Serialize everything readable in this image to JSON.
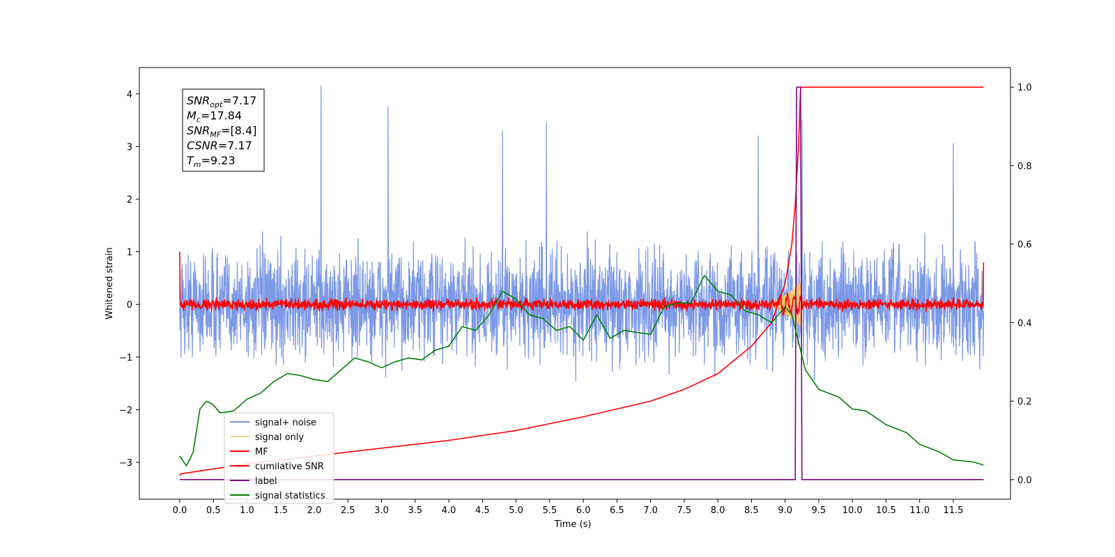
{
  "chart_data": {
    "type": "line",
    "xlabel": "Time (s)",
    "ylabel": "Whitened strain",
    "xlim": [
      -0.6,
      12.35
    ],
    "ylim": [
      -3.7,
      4.5
    ],
    "y2lim": [
      -0.05,
      1.05
    ],
    "x_ticks": [
      0.0,
      0.5,
      1.0,
      1.5,
      2.0,
      2.5,
      3.0,
      3.5,
      4.0,
      4.5,
      5.0,
      5.5,
      6.0,
      6.5,
      7.0,
      7.5,
      8.0,
      8.5,
      9.0,
      9.5,
      10.0,
      10.5,
      11.0,
      11.5
    ],
    "x_tick_labels": [
      "0.0",
      "0.5",
      "1.0",
      "1.5",
      "2.0",
      "2.5",
      "3.0",
      "3.5",
      "4.0",
      "4.5",
      "5.0",
      "5.5",
      "6.0",
      "6.5",
      "7.0",
      "7.5",
      "8.0",
      "8.5",
      "9.0",
      "9.5",
      "10.0",
      "10.5",
      "11.0",
      "11.5"
    ],
    "y_ticks": [
      -3,
      -2,
      -1,
      0,
      1,
      2,
      3,
      4
    ],
    "y_tick_labels": [
      "−3",
      "−2",
      "−1",
      "0",
      "1",
      "2",
      "3",
      "4"
    ],
    "y2_ticks": [
      0.0,
      0.2,
      0.4,
      0.6,
      0.8,
      1.0
    ],
    "y2_tick_labels": [
      "0.0",
      "0.2",
      "0.4",
      "0.6",
      "0.8",
      "1.0"
    ],
    "grid": false,
    "legend_position": "lower-left",
    "info_box": {
      "lines": [
        {
          "main": "SNR",
          "sub": "opt",
          "rest": "=7.17"
        },
        {
          "main": "M",
          "sub": "c",
          "rest": "=17.84"
        },
        {
          "main": "SNR",
          "sub": "MF",
          "rest": "=[8.4]"
        },
        {
          "main": "CSNR",
          "sub": "",
          "rest": "=7.17"
        },
        {
          "main": "T",
          "sub": "m",
          "rest": "=9.23"
        }
      ]
    },
    "series": [
      {
        "name": "signal+ noise",
        "color": "#7593e6",
        "axis": "left",
        "kind": "noise",
        "amplitude": 1.75,
        "peaks_x": [
          2.1,
          3.1,
          4.8,
          5.45,
          8.6,
          9.25,
          11.5
        ],
        "peaks_y": [
          4.15,
          3.75,
          3.3,
          3.45,
          3.2,
          3.5,
          3.05
        ]
      },
      {
        "name": "signal only",
        "color": "#f5c26b",
        "axis": "left",
        "kind": "chirp",
        "x_start": 8.7,
        "x_end": 9.23,
        "max_amplitude": 0.42
      },
      {
        "name": "MF",
        "color": "#ff0000",
        "axis": "left",
        "kind": "noise",
        "amplitude": 0.17,
        "start_value": 1.0,
        "end_value": 0.8
      },
      {
        "name": "cumilative SNR",
        "color": "#ff0000",
        "axis": "right",
        "x": [
          0.0,
          0.02,
          1.0,
          2.0,
          3.0,
          4.0,
          5.0,
          6.0,
          6.5,
          7.0,
          7.5,
          8.0,
          8.5,
          8.8,
          9.0,
          9.1,
          9.15,
          9.2,
          9.23,
          11.95
        ],
        "y": [
          0.01,
          0.015,
          0.04,
          0.06,
          0.08,
          0.1,
          0.125,
          0.16,
          0.18,
          0.2,
          0.23,
          0.27,
          0.34,
          0.4,
          0.5,
          0.6,
          0.7,
          0.85,
          1.0,
          1.0
        ]
      },
      {
        "name": "label",
        "color": "#800080",
        "axis": "right",
        "x": [
          0.0,
          9.15,
          9.17,
          9.23,
          9.25,
          11.95
        ],
        "y": [
          0.0,
          0.0,
          1.0,
          1.0,
          0.0,
          0.0
        ]
      },
      {
        "name": "signal statistics",
        "color": "#008000",
        "axis": "right",
        "x": [
          0.0,
          0.1,
          0.2,
          0.3,
          0.4,
          0.5,
          0.6,
          0.8,
          1.0,
          1.2,
          1.4,
          1.6,
          1.8,
          2.0,
          2.2,
          2.4,
          2.6,
          2.8,
          3.0,
          3.2,
          3.4,
          3.6,
          3.8,
          4.0,
          4.2,
          4.4,
          4.6,
          4.8,
          5.0,
          5.2,
          5.4,
          5.6,
          5.8,
          6.0,
          6.2,
          6.4,
          6.6,
          6.8,
          7.0,
          7.2,
          7.4,
          7.6,
          7.8,
          8.0,
          8.2,
          8.4,
          8.6,
          8.8,
          9.0,
          9.1,
          9.2,
          9.3,
          9.5,
          9.8,
          10.0,
          10.2,
          10.5,
          10.8,
          11.0,
          11.3,
          11.5,
          11.8,
          11.95
        ],
        "y": [
          0.06,
          0.035,
          0.07,
          0.18,
          0.2,
          0.19,
          0.17,
          0.175,
          0.205,
          0.22,
          0.25,
          0.27,
          0.265,
          0.255,
          0.25,
          0.28,
          0.31,
          0.3,
          0.285,
          0.3,
          0.31,
          0.305,
          0.33,
          0.34,
          0.39,
          0.38,
          0.42,
          0.48,
          0.46,
          0.42,
          0.41,
          0.38,
          0.39,
          0.355,
          0.42,
          0.36,
          0.38,
          0.375,
          0.37,
          0.44,
          0.45,
          0.45,
          0.52,
          0.48,
          0.47,
          0.43,
          0.42,
          0.4,
          0.44,
          0.42,
          0.35,
          0.28,
          0.23,
          0.21,
          0.18,
          0.175,
          0.14,
          0.12,
          0.09,
          0.07,
          0.05,
          0.045,
          0.037
        ]
      }
    ]
  }
}
